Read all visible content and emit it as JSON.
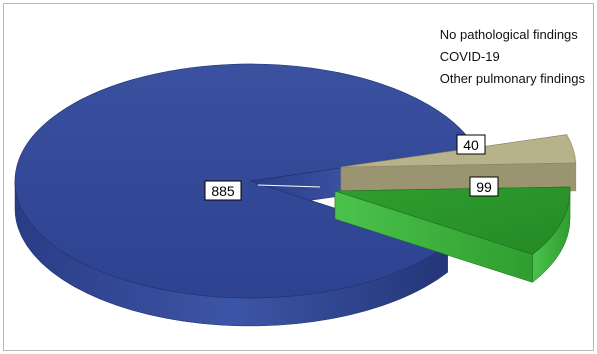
{
  "chart_data": {
    "type": "pie",
    "style": "3d-exploded",
    "categories": [
      "No pathological findings",
      "COVID-19",
      "Other pulmonary findings"
    ],
    "values": [
      885,
      99,
      40
    ],
    "colors": [
      "#2f4592",
      "#2a9a2a",
      "#b7b28a"
    ],
    "legend": {
      "placement": "top-right",
      "entries": [
        "No pathological findings",
        "COVID-19",
        "Other pulmonary findings"
      ]
    },
    "data_labels": [
      "885",
      "99",
      "40"
    ]
  }
}
